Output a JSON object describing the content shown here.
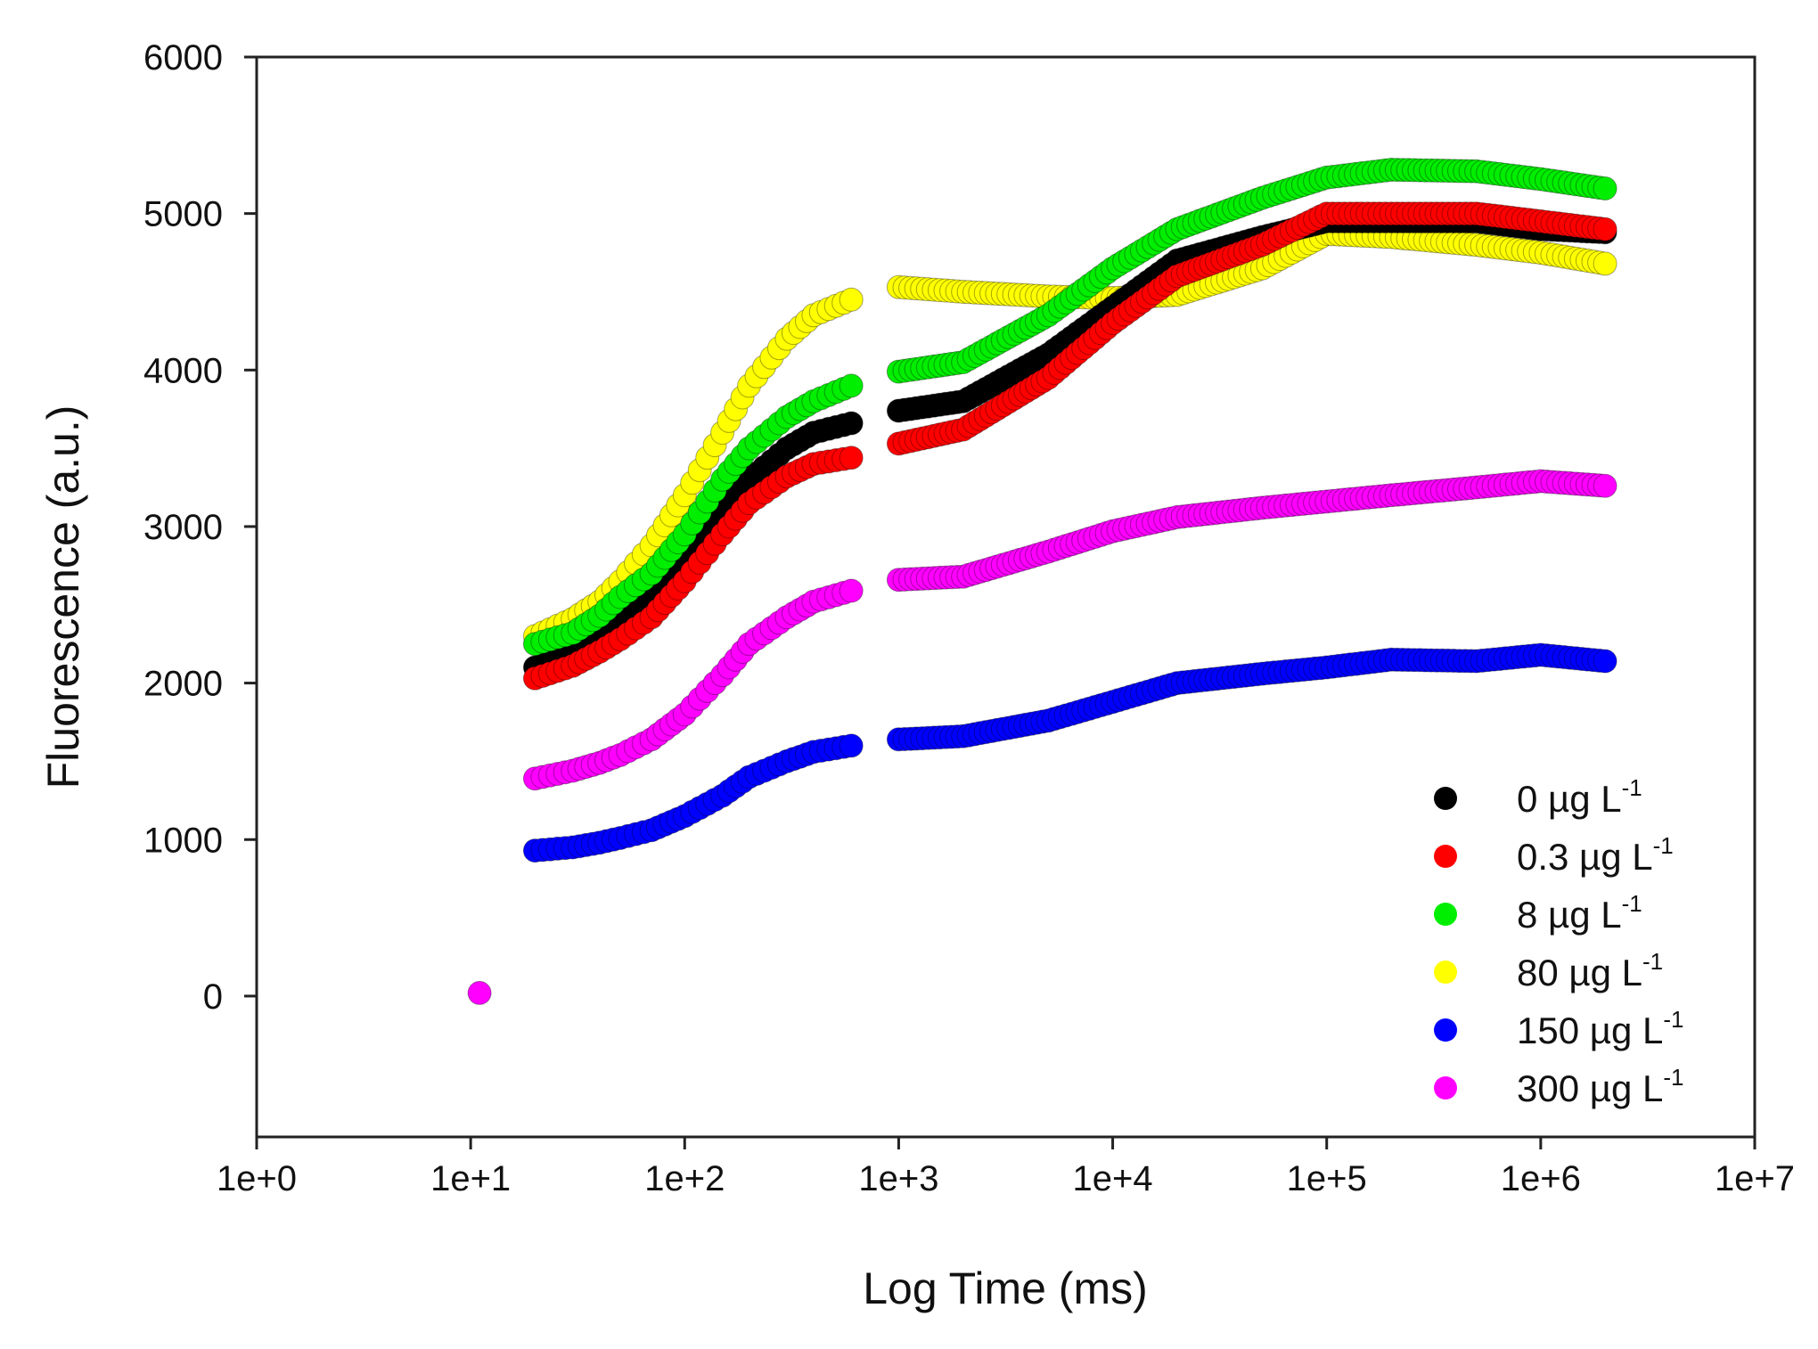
{
  "chart_data": {
    "type": "scatter",
    "title": "",
    "xlabel": "Log Time (ms)",
    "ylabel": "Fluorescence (a.u.)",
    "xscale": "log",
    "xlim": [
      1,
      10000000
    ],
    "ylim": [
      -900,
      6000
    ],
    "grid": false,
    "legend_position": "bottom-right",
    "x_ticks": [
      {
        "value": 1,
        "label": "1e+0"
      },
      {
        "value": 10,
        "label": "1e+1"
      },
      {
        "value": 100,
        "label": "1e+2"
      },
      {
        "value": 1000,
        "label": "1e+3"
      },
      {
        "value": 10000,
        "label": "1e+4"
      },
      {
        "value": 100000,
        "label": "1e+5"
      },
      {
        "value": 1000000,
        "label": "1e+6"
      },
      {
        "value": 10000000,
        "label": "1e+7"
      }
    ],
    "y_ticks": [
      {
        "value": 0,
        "label": "0"
      },
      {
        "value": 1000,
        "label": "1000"
      },
      {
        "value": 2000,
        "label": "2000"
      },
      {
        "value": 3000,
        "label": "3000"
      },
      {
        "value": 4000,
        "label": "4000"
      },
      {
        "value": 5000,
        "label": "5000"
      },
      {
        "value": 6000,
        "label": "6000"
      }
    ],
    "series": [
      {
        "name": "0 µg L-1",
        "label_main": "0 µg L",
        "label_sup": "-1",
        "color": "#000000",
        "points": [
          [
            20,
            2100
          ],
          [
            30,
            2200
          ],
          [
            40,
            2300
          ],
          [
            50,
            2380
          ],
          [
            70,
            2550
          ],
          [
            100,
            2800
          ],
          [
            150,
            3100
          ],
          [
            200,
            3300
          ],
          [
            300,
            3500
          ],
          [
            400,
            3600
          ],
          [
            600,
            3660
          ],
          [
            1000,
            3740
          ],
          [
            2000,
            3800
          ],
          [
            5000,
            4100
          ],
          [
            10000,
            4400
          ],
          [
            20000,
            4700
          ],
          [
            50000,
            4850
          ],
          [
            100000,
            4950
          ],
          [
            200000,
            4950
          ],
          [
            500000,
            4950
          ],
          [
            1000000,
            4900
          ],
          [
            2000000,
            4880
          ]
        ]
      },
      {
        "name": "0.3 µg L-1",
        "label_main": "0.3  µg L",
        "label_sup": "-1",
        "color": "#ff0000",
        "points": [
          [
            20,
            2030
          ],
          [
            30,
            2110
          ],
          [
            40,
            2200
          ],
          [
            50,
            2280
          ],
          [
            70,
            2420
          ],
          [
            100,
            2650
          ],
          [
            150,
            2950
          ],
          [
            200,
            3150
          ],
          [
            300,
            3320
          ],
          [
            400,
            3400
          ],
          [
            600,
            3440
          ],
          [
            1000,
            3530
          ],
          [
            2000,
            3620
          ],
          [
            5000,
            3950
          ],
          [
            10000,
            4300
          ],
          [
            20000,
            4600
          ],
          [
            50000,
            4800
          ],
          [
            100000,
            5000
          ],
          [
            200000,
            5000
          ],
          [
            500000,
            5000
          ],
          [
            1000000,
            4950
          ],
          [
            2000000,
            4900
          ]
        ]
      },
      {
        "name": "8 µg L-1",
        "label_main": "8 µg L",
        "label_sup": "-1",
        "color": "#00ee00",
        "points": [
          [
            20,
            2250
          ],
          [
            30,
            2320
          ],
          [
            40,
            2430
          ],
          [
            50,
            2550
          ],
          [
            70,
            2700
          ],
          [
            100,
            2950
          ],
          [
            150,
            3300
          ],
          [
            200,
            3500
          ],
          [
            300,
            3700
          ],
          [
            400,
            3800
          ],
          [
            600,
            3900
          ],
          [
            1000,
            3990
          ],
          [
            2000,
            4050
          ],
          [
            5000,
            4350
          ],
          [
            10000,
            4650
          ],
          [
            20000,
            4900
          ],
          [
            50000,
            5100
          ],
          [
            100000,
            5230
          ],
          [
            200000,
            5280
          ],
          [
            500000,
            5270
          ],
          [
            1000000,
            5220
          ],
          [
            2000000,
            5160
          ]
        ]
      },
      {
        "name": "80 µg L-1",
        "label_main": "80 µg L",
        "label_sup": "-1",
        "color": "#ffff00",
        "points": [
          [
            20,
            2300
          ],
          [
            30,
            2410
          ],
          [
            40,
            2520
          ],
          [
            50,
            2650
          ],
          [
            70,
            2880
          ],
          [
            100,
            3200
          ],
          [
            150,
            3600
          ],
          [
            200,
            3900
          ],
          [
            300,
            4200
          ],
          [
            400,
            4350
          ],
          [
            600,
            4450
          ],
          [
            1000,
            4530
          ],
          [
            2000,
            4500
          ],
          [
            5000,
            4470
          ],
          [
            10000,
            4460
          ],
          [
            20000,
            4480
          ],
          [
            50000,
            4650
          ],
          [
            100000,
            4870
          ],
          [
            200000,
            4850
          ],
          [
            500000,
            4800
          ],
          [
            1000000,
            4750
          ],
          [
            2000000,
            4680
          ]
        ]
      },
      {
        "name": "150 µg L-1",
        "label_main": "150 µg L",
        "label_sup": "-1",
        "color": "#0000ff",
        "points": [
          [
            20,
            930
          ],
          [
            30,
            950
          ],
          [
            40,
            980
          ],
          [
            50,
            1010
          ],
          [
            70,
            1060
          ],
          [
            100,
            1150
          ],
          [
            150,
            1280
          ],
          [
            200,
            1400
          ],
          [
            300,
            1500
          ],
          [
            400,
            1560
          ],
          [
            600,
            1600
          ],
          [
            1000,
            1640
          ],
          [
            2000,
            1660
          ],
          [
            5000,
            1760
          ],
          [
            10000,
            1880
          ],
          [
            20000,
            2000
          ],
          [
            50000,
            2060
          ],
          [
            100000,
            2100
          ],
          [
            200000,
            2150
          ],
          [
            500000,
            2140
          ],
          [
            1000000,
            2180
          ],
          [
            2000000,
            2140
          ]
        ]
      },
      {
        "name": "300 µg L-1",
        "label_main": "300 µg L",
        "label_sup": "-1",
        "color": "#ff00ff",
        "points": [
          [
            11,
            20
          ],
          [
            20,
            1390
          ],
          [
            30,
            1440
          ],
          [
            40,
            1490
          ],
          [
            50,
            1540
          ],
          [
            70,
            1640
          ],
          [
            100,
            1800
          ],
          [
            150,
            2050
          ],
          [
            200,
            2250
          ],
          [
            300,
            2420
          ],
          [
            400,
            2520
          ],
          [
            600,
            2590
          ],
          [
            1000,
            2660
          ],
          [
            2000,
            2680
          ],
          [
            5000,
            2840
          ],
          [
            10000,
            2970
          ],
          [
            20000,
            3060
          ],
          [
            50000,
            3120
          ],
          [
            100000,
            3160
          ],
          [
            200000,
            3200
          ],
          [
            500000,
            3250
          ],
          [
            1000000,
            3290
          ],
          [
            2000000,
            3260
          ]
        ]
      }
    ]
  }
}
